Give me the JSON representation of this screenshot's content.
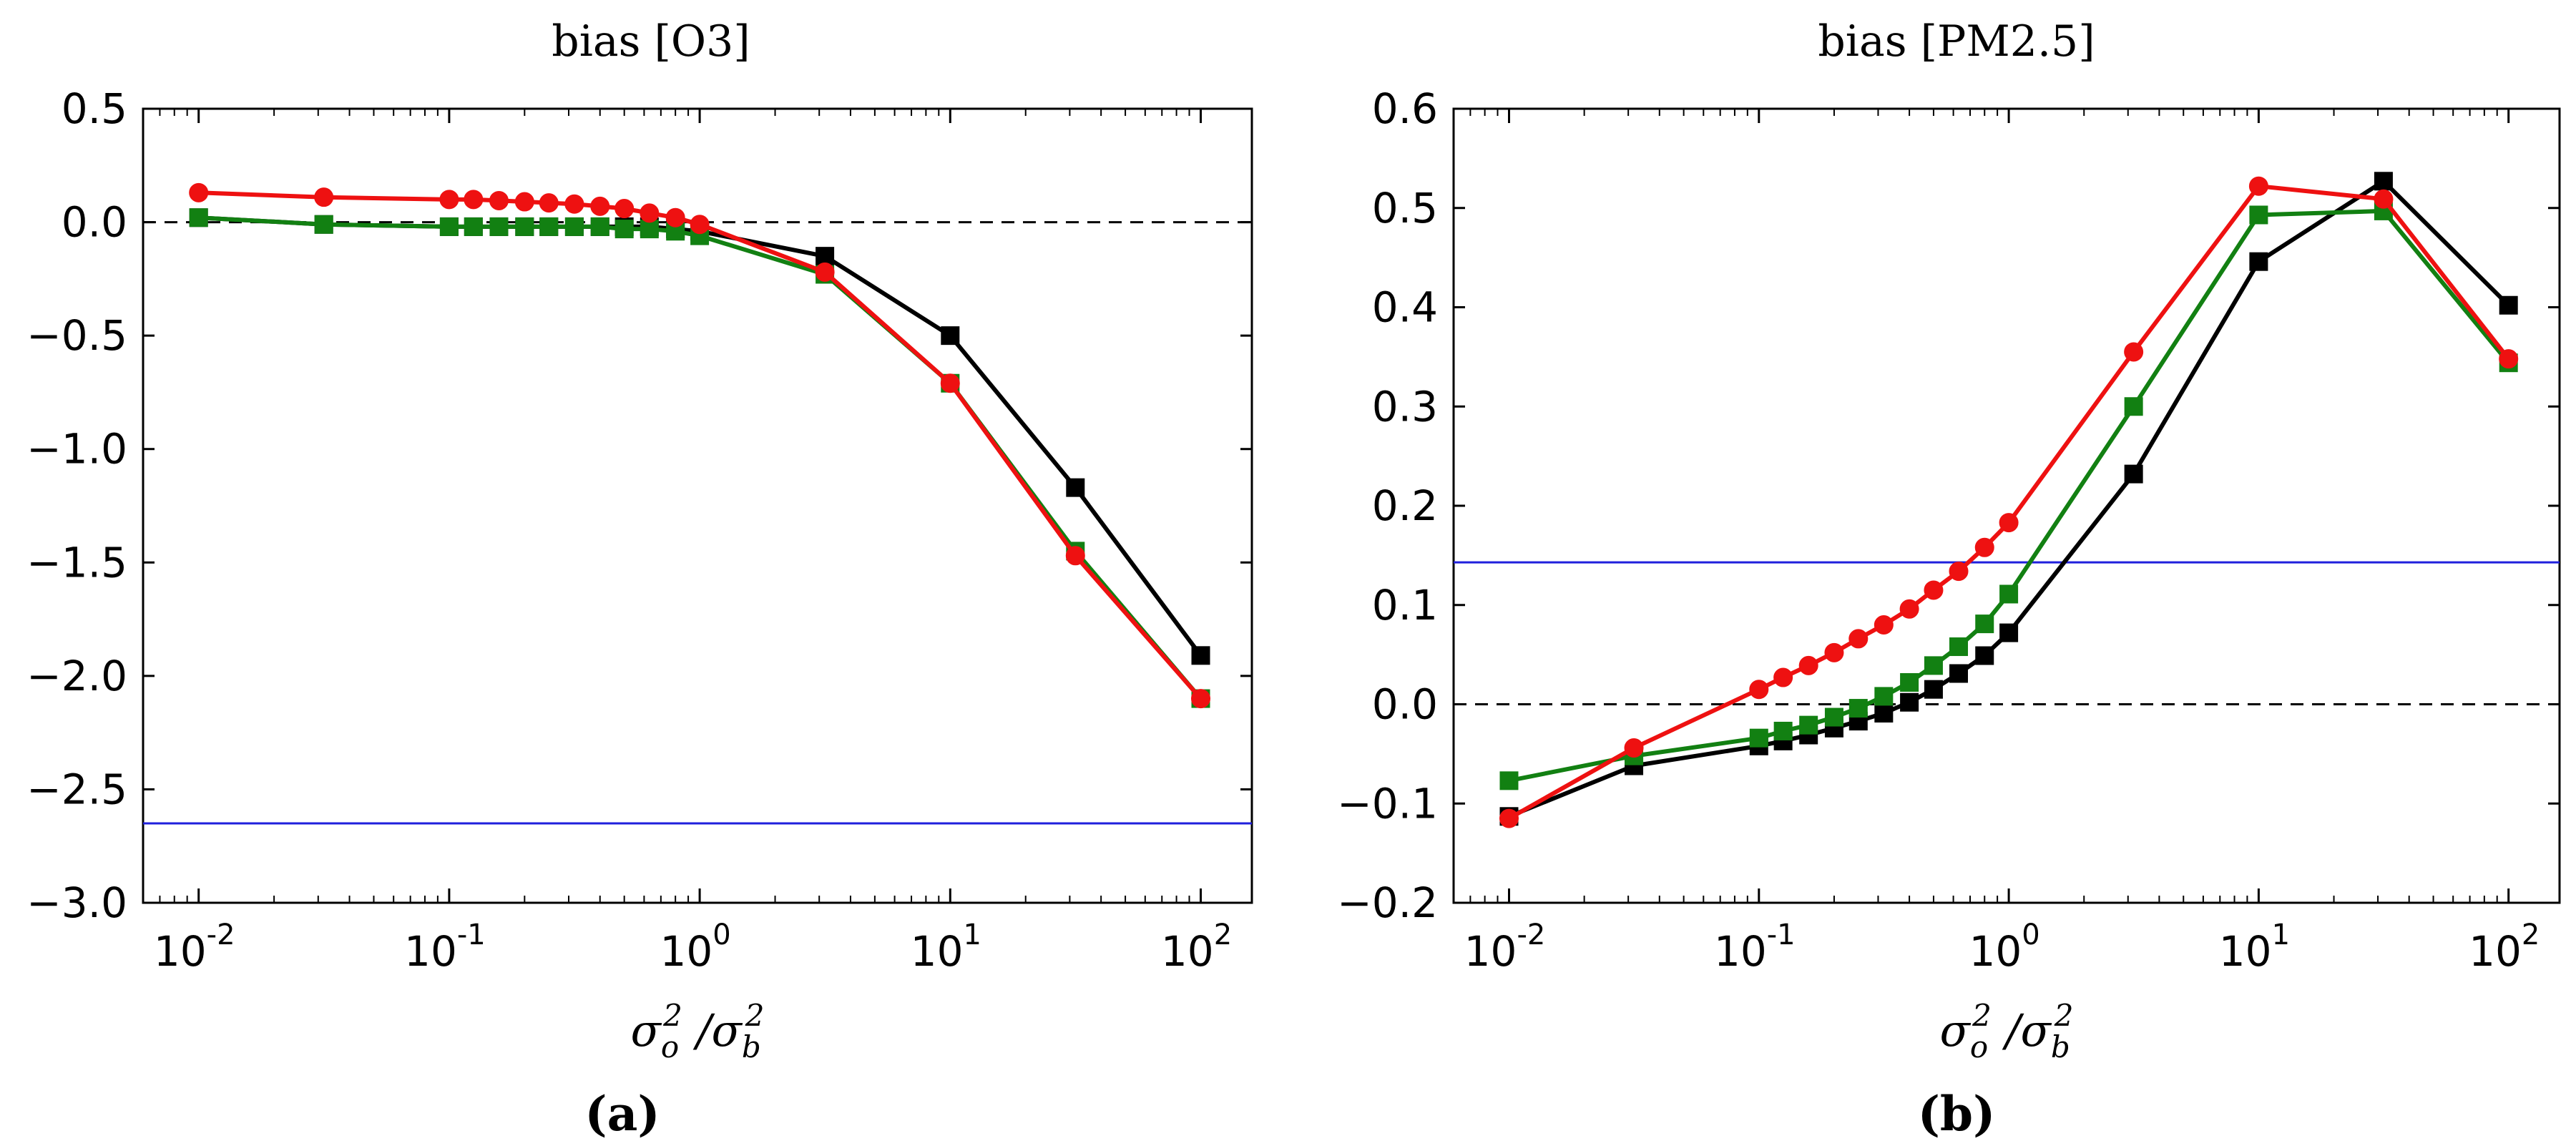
{
  "figure": {
    "panels": [
      {
        "title": "bias [O3]",
        "caption": "(a)"
      },
      {
        "title": "bias [PM2.5]",
        "caption": "(b)"
      }
    ],
    "xlabel_parts": {
      "o": "σ",
      "o_sub": "o",
      "sup": "2",
      "sep": " /",
      "b": "σ",
      "b_sub": "b"
    }
  },
  "chart_data": [
    {
      "type": "line",
      "title": "bias [O3]",
      "xlabel": "σo² /σb²",
      "ylabel": "",
      "xscale": "log",
      "xlim": [
        0.006,
        160
      ],
      "ylim": [
        -3.0,
        0.5
      ],
      "yticks": [
        0.5,
        0.0,
        -0.5,
        -1.0,
        -1.5,
        -2.0,
        -2.5,
        -3.0
      ],
      "ytick_labels": [
        "0.5",
        "0.0",
        "−0.5",
        "−1.0",
        "−1.5",
        "−2.0",
        "−2.5",
        "−3.0"
      ],
      "xticks": [
        0.01,
        0.1,
        1,
        10,
        100
      ],
      "xtick_labels": [
        {
          "base": "10",
          "exp": "-2"
        },
        {
          "base": "10",
          "exp": "-1"
        },
        {
          "base": "10",
          "exp": "0"
        },
        {
          "base": "10",
          "exp": "1"
        },
        {
          "base": "10",
          "exp": "2"
        }
      ],
      "reference_lines": [
        {
          "name": "zero",
          "y": 0.0,
          "color": "#000000",
          "style": "dashed"
        },
        {
          "name": "baseline",
          "y": -2.65,
          "color": "#1f1fdc",
          "style": "solid"
        }
      ],
      "series": [
        {
          "name": "black",
          "color": "#000000",
          "marker": "square",
          "x": [
            0.01,
            0.0316,
            0.1,
            0.125,
            0.158,
            0.2,
            0.25,
            0.316,
            0.4,
            0.5,
            0.63,
            0.8,
            1.0,
            3.16,
            10,
            31.6,
            100
          ],
          "y": [
            0.02,
            -0.01,
            -0.02,
            -0.02,
            -0.02,
            -0.02,
            -0.02,
            -0.02,
            -0.02,
            -0.02,
            -0.02,
            -0.03,
            -0.04,
            -0.15,
            -0.5,
            -1.17,
            -1.91
          ]
        },
        {
          "name": "green",
          "color": "#128012",
          "marker": "square",
          "x": [
            0.01,
            0.0316,
            0.1,
            0.125,
            0.158,
            0.2,
            0.25,
            0.316,
            0.4,
            0.5,
            0.63,
            0.8,
            1.0,
            3.16,
            10,
            31.6,
            100
          ],
          "y": [
            0.02,
            -0.01,
            -0.02,
            -0.02,
            -0.02,
            -0.02,
            -0.02,
            -0.02,
            -0.02,
            -0.03,
            -0.03,
            -0.04,
            -0.06,
            -0.23,
            -0.71,
            -1.45,
            -2.1
          ]
        },
        {
          "name": "red",
          "color": "#ee1111",
          "marker": "circle",
          "x": [
            0.01,
            0.0316,
            0.1,
            0.125,
            0.158,
            0.2,
            0.25,
            0.316,
            0.4,
            0.5,
            0.63,
            0.8,
            1.0,
            3.16,
            10,
            31.6,
            100
          ],
          "y": [
            0.13,
            0.11,
            0.1,
            0.1,
            0.095,
            0.09,
            0.085,
            0.08,
            0.07,
            0.06,
            0.04,
            0.02,
            -0.01,
            -0.22,
            -0.71,
            -1.47,
            -2.1
          ]
        }
      ]
    },
    {
      "type": "line",
      "title": "bias [PM2.5]",
      "xlabel": "σo² /σb²",
      "ylabel": "",
      "xscale": "log",
      "xlim": [
        0.006,
        160
      ],
      "ylim": [
        -0.2,
        0.6
      ],
      "yticks": [
        0.6,
        0.5,
        0.4,
        0.3,
        0.2,
        0.1,
        0.0,
        -0.1,
        -0.2
      ],
      "ytick_labels": [
        "0.6",
        "0.5",
        "0.4",
        "0.3",
        "0.2",
        "0.1",
        "0.0",
        "−0.1",
        "−0.2"
      ],
      "xticks": [
        0.01,
        0.1,
        1,
        10,
        100
      ],
      "xtick_labels": [
        {
          "base": "10",
          "exp": "-2"
        },
        {
          "base": "10",
          "exp": "-1"
        },
        {
          "base": "10",
          "exp": "0"
        },
        {
          "base": "10",
          "exp": "1"
        },
        {
          "base": "10",
          "exp": "2"
        }
      ],
      "reference_lines": [
        {
          "name": "zero",
          "y": 0.0,
          "color": "#000000",
          "style": "dashed"
        },
        {
          "name": "baseline",
          "y": 0.143,
          "color": "#1f1fdc",
          "style": "solid"
        }
      ],
      "series": [
        {
          "name": "black",
          "color": "#000000",
          "marker": "square",
          "x": [
            0.01,
            0.0316,
            0.1,
            0.125,
            0.158,
            0.2,
            0.25,
            0.316,
            0.4,
            0.5,
            0.63,
            0.8,
            1.0,
            3.16,
            10,
            31.6,
            100
          ],
          "y": [
            -0.113,
            -0.062,
            -0.042,
            -0.037,
            -0.031,
            -0.024,
            -0.017,
            -0.009,
            0.002,
            0.015,
            0.031,
            0.049,
            0.072,
            0.232,
            0.446,
            0.527,
            0.402
          ]
        },
        {
          "name": "green",
          "color": "#128012",
          "marker": "square",
          "x": [
            0.01,
            0.0316,
            0.1,
            0.125,
            0.158,
            0.2,
            0.25,
            0.316,
            0.4,
            0.5,
            0.63,
            0.8,
            1.0,
            3.16,
            10,
            31.6,
            100
          ],
          "y": [
            -0.077,
            -0.052,
            -0.034,
            -0.027,
            -0.021,
            -0.013,
            -0.004,
            0.008,
            0.022,
            0.039,
            0.058,
            0.081,
            0.111,
            0.3,
            0.493,
            0.497,
            0.344
          ]
        },
        {
          "name": "red",
          "color": "#ee1111",
          "marker": "circle",
          "x": [
            0.01,
            0.0316,
            0.1,
            0.125,
            0.158,
            0.2,
            0.25,
            0.316,
            0.4,
            0.5,
            0.63,
            0.8,
            1.0,
            3.16,
            10,
            31.6,
            100
          ],
          "y": [
            -0.115,
            -0.044,
            0.015,
            0.027,
            0.039,
            0.052,
            0.066,
            0.08,
            0.096,
            0.115,
            0.134,
            0.158,
            0.183,
            0.355,
            0.522,
            0.509,
            0.348
          ]
        }
      ]
    }
  ]
}
